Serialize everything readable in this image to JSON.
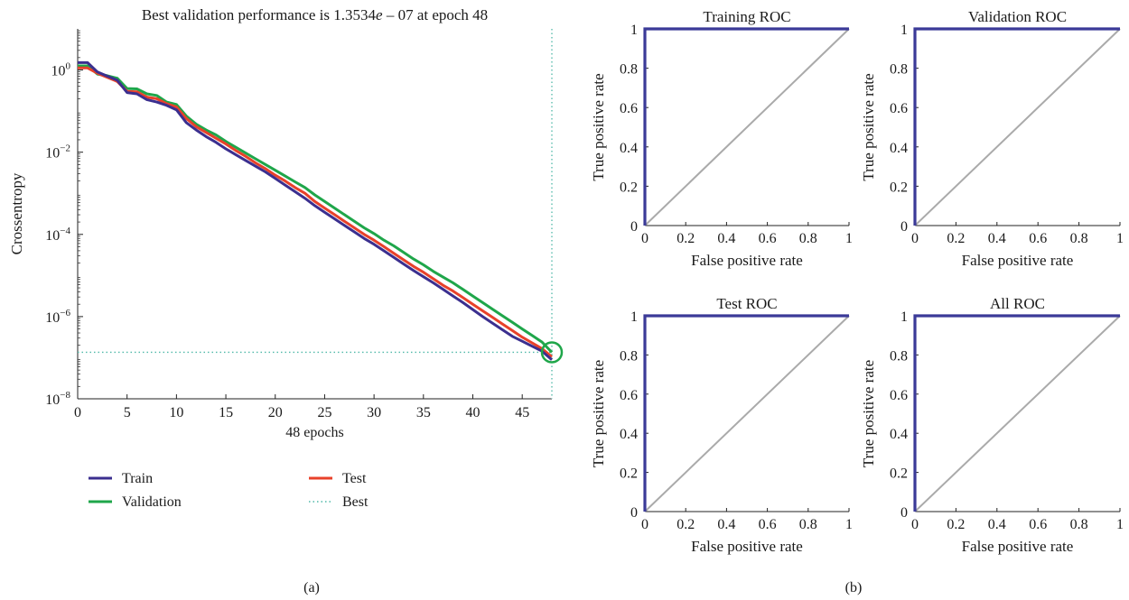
{
  "colors": {
    "train": "#3b2f8f",
    "validation": "#1fa64a",
    "test": "#e8412a",
    "best": "#4fb8a8",
    "roc": "#3b3a98",
    "diagonal": "#aaaaaa",
    "axis": "#222222"
  },
  "panel_labels": {
    "a": "(a)",
    "b": "(b)"
  },
  "chart_data": [
    {
      "id": "performance",
      "type": "line",
      "title": "Best validation performance is 1.3534e – 07 at epoch 48",
      "title_parts": [
        "Best validation performance is 1.3534",
        "e",
        " – 07 at epoch 48"
      ],
      "xlabel": "48 epochs",
      "ylabel": "Crossentropy",
      "xlim": [
        0,
        48
      ],
      "ylim_log10": [
        -8,
        1
      ],
      "yscale": "log",
      "xticks": [
        0,
        5,
        10,
        15,
        20,
        25,
        30,
        35,
        40,
        45
      ],
      "yticks": [
        {
          "exp": 0,
          "base": "10",
          "sup": "0"
        },
        {
          "exp": -2,
          "base": "10",
          "sup": "−2"
        },
        {
          "exp": -4,
          "base": "10",
          "sup": "−4"
        },
        {
          "exp": -6,
          "base": "10",
          "sup": "−6"
        },
        {
          "exp": -8,
          "base": "10",
          "sup": "−8"
        }
      ],
      "best": {
        "epoch": 48,
        "value": 1.3534e-07
      },
      "legend": {
        "train": "Train",
        "validation": "Validation",
        "test": "Test",
        "best": "Best"
      },
      "series": [
        {
          "name": "Train",
          "x": [
            0,
            1,
            2,
            3,
            4,
            5,
            6,
            7,
            8,
            9,
            10,
            11,
            12,
            13,
            14,
            15,
            16,
            17,
            18,
            19,
            20,
            21,
            22,
            23,
            24,
            25,
            26,
            27,
            28,
            29,
            30,
            31,
            32,
            33,
            34,
            35,
            36,
            37,
            38,
            39,
            40,
            41,
            42,
            43,
            44,
            45,
            46,
            47,
            48
          ],
          "log10y": [
            0.18,
            0.18,
            -0.05,
            -0.15,
            -0.25,
            -0.55,
            -0.58,
            -0.72,
            -0.78,
            -0.86,
            -0.97,
            -1.28,
            -1.46,
            -1.62,
            -1.76,
            -1.92,
            -2.06,
            -2.2,
            -2.34,
            -2.48,
            -2.64,
            -2.8,
            -2.96,
            -3.12,
            -3.3,
            -3.46,
            -3.62,
            -3.78,
            -3.94,
            -4.1,
            -4.24,
            -4.4,
            -4.56,
            -4.72,
            -4.88,
            -5.03,
            -5.18,
            -5.34,
            -5.5,
            -5.66,
            -5.83,
            -6.0,
            -6.16,
            -6.32,
            -6.48,
            -6.6,
            -6.72,
            -6.84,
            -7.05
          ]
        },
        {
          "name": "Validation",
          "x": [
            0,
            1,
            2,
            3,
            4,
            5,
            6,
            7,
            8,
            9,
            10,
            11,
            12,
            13,
            14,
            15,
            16,
            17,
            18,
            19,
            20,
            21,
            22,
            23,
            24,
            25,
            26,
            27,
            28,
            29,
            30,
            31,
            32,
            33,
            34,
            35,
            36,
            37,
            38,
            39,
            40,
            41,
            42,
            43,
            44,
            45,
            46,
            47,
            48
          ],
          "log10y": [
            0.1,
            0.1,
            -0.1,
            -0.14,
            -0.2,
            -0.45,
            -0.46,
            -0.58,
            -0.62,
            -0.78,
            -0.84,
            -1.12,
            -1.32,
            -1.46,
            -1.58,
            -1.74,
            -1.88,
            -2.02,
            -2.16,
            -2.3,
            -2.44,
            -2.58,
            -2.72,
            -2.86,
            -3.04,
            -3.2,
            -3.36,
            -3.52,
            -3.68,
            -3.84,
            -3.98,
            -4.14,
            -4.28,
            -4.44,
            -4.6,
            -4.74,
            -4.9,
            -5.04,
            -5.18,
            -5.34,
            -5.5,
            -5.66,
            -5.82,
            -5.98,
            -6.14,
            -6.3,
            -6.46,
            -6.62,
            -6.87
          ]
        },
        {
          "name": "Test",
          "x": [
            0,
            1,
            2,
            3,
            4,
            5,
            6,
            7,
            8,
            9,
            10,
            11,
            12,
            13,
            14,
            15,
            16,
            17,
            18,
            19,
            20,
            21,
            22,
            23,
            24,
            25,
            26,
            27,
            28,
            29,
            30,
            31,
            32,
            33,
            34,
            35,
            36,
            37,
            38,
            39,
            40,
            41,
            42,
            43,
            44,
            45,
            46,
            47,
            48
          ],
          "log10y": [
            0.05,
            0.05,
            -0.08,
            -0.18,
            -0.28,
            -0.52,
            -0.53,
            -0.66,
            -0.7,
            -0.82,
            -0.9,
            -1.18,
            -1.38,
            -1.52,
            -1.66,
            -1.8,
            -1.96,
            -2.1,
            -2.26,
            -2.4,
            -2.56,
            -2.7,
            -2.86,
            -3.0,
            -3.2,
            -3.36,
            -3.52,
            -3.68,
            -3.84,
            -4.0,
            -4.14,
            -4.3,
            -4.46,
            -4.62,
            -4.78,
            -4.92,
            -5.08,
            -5.24,
            -5.38,
            -5.54,
            -5.7,
            -5.86,
            -6.02,
            -6.18,
            -6.34,
            -6.5,
            -6.64,
            -6.78,
            -6.98
          ]
        }
      ]
    },
    {
      "id": "roc-training",
      "type": "line",
      "title": "Training ROC",
      "xlabel": "False positive rate",
      "ylabel": "True positive rate",
      "xlim": [
        0,
        1
      ],
      "ylim": [
        0,
        1
      ],
      "xticks": [
        "0",
        "0.2",
        "0.4",
        "0.6",
        "0.8",
        "1"
      ],
      "yticks": [
        "0",
        "0.2",
        "0.4",
        "0.6",
        "0.8",
        "1"
      ],
      "series": [
        {
          "x": [
            0,
            0,
            1
          ],
          "y": [
            0,
            1,
            1
          ]
        }
      ]
    },
    {
      "id": "roc-validation",
      "type": "line",
      "title": "Validation ROC",
      "xlabel": "False positive rate",
      "ylabel": "True positive rate",
      "xlim": [
        0,
        1
      ],
      "ylim": [
        0,
        1
      ],
      "xticks": [
        "0",
        "0.2",
        "0.4",
        "0.6",
        "0.8",
        "1"
      ],
      "yticks": [
        "0",
        "0.2",
        "0.4",
        "0.6",
        "0.8",
        "1"
      ],
      "series": [
        {
          "x": [
            0,
            0,
            1
          ],
          "y": [
            0,
            1,
            1
          ]
        }
      ]
    },
    {
      "id": "roc-test",
      "type": "line",
      "title": "Test ROC",
      "xlabel": "False positive rate",
      "ylabel": "True positive rate",
      "xlim": [
        0,
        1
      ],
      "ylim": [
        0,
        1
      ],
      "xticks": [
        "0",
        "0.2",
        "0.4",
        "0.6",
        "0.8",
        "1"
      ],
      "yticks": [
        "0",
        "0.2",
        "0.4",
        "0.6",
        "0.8",
        "1"
      ],
      "series": [
        {
          "x": [
            0,
            0,
            1
          ],
          "y": [
            0,
            1,
            1
          ]
        }
      ]
    },
    {
      "id": "roc-all",
      "type": "line",
      "title": "All ROC",
      "xlabel": "False positive rate",
      "ylabel": "True positive rate",
      "xlim": [
        0,
        1
      ],
      "ylim": [
        0,
        1
      ],
      "xticks": [
        "0",
        "0.2",
        "0.4",
        "0.6",
        "0.8",
        "1"
      ],
      "yticks": [
        "0",
        "0.2",
        "0.4",
        "0.6",
        "0.8",
        "1"
      ],
      "series": [
        {
          "x": [
            0,
            0,
            1
          ],
          "y": [
            0,
            1,
            1
          ]
        }
      ]
    }
  ]
}
